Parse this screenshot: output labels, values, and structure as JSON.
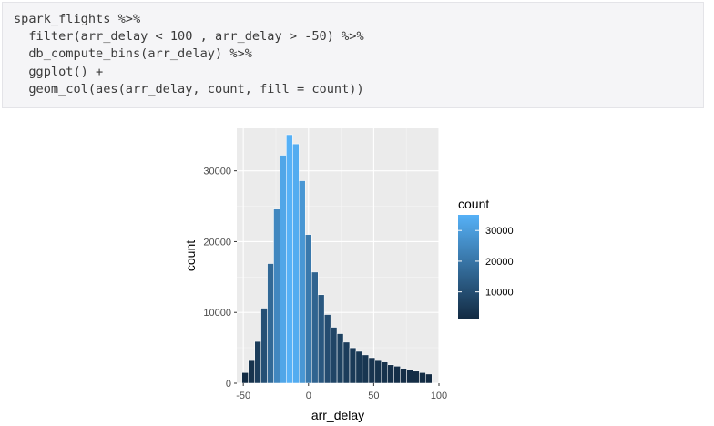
{
  "code": {
    "lines": [
      "spark_flights %>%",
      "  filter(arr_delay < 100 , arr_delay > -50) %>%",
      "  db_compute_bins(arr_delay) %>%",
      "  ggplot() +",
      "  geom_col(aes(arr_delay, count, fill = count))"
    ]
  },
  "chart_data": {
    "type": "bar",
    "title": "",
    "xlabel": "arr_delay",
    "ylabel": "count",
    "xlim": [
      -55,
      100
    ],
    "ylim": [
      0,
      36000
    ],
    "x_ticks": [
      -50,
      0,
      50,
      100
    ],
    "y_ticks": [
      0,
      10000,
      20000,
      30000
    ],
    "x_tick_labels": [
      "-50",
      "0",
      "50",
      "100"
    ],
    "y_tick_labels": [
      "0",
      "10000",
      "20000",
      "30000"
    ],
    "bin_width": 4.85,
    "x": [
      -48.6,
      -43.7,
      -38.8,
      -34.0,
      -29.1,
      -24.3,
      -19.4,
      -14.6,
      -9.7,
      -4.9,
      0.0,
      4.9,
      9.7,
      14.6,
      19.4,
      24.3,
      29.1,
      34.0,
      38.8,
      43.7,
      48.6,
      53.4,
      58.3,
      63.1,
      68.0,
      72.8,
      77.7,
      82.5,
      87.4,
      92.2
    ],
    "values": [
      1500,
      3200,
      5900,
      10600,
      16900,
      24600,
      32200,
      35100,
      33800,
      28600,
      21000,
      15700,
      12500,
      9700,
      7900,
      7000,
      5800,
      5000,
      4500,
      4000,
      3600,
      3200,
      3000,
      2600,
      2400,
      2100,
      1900,
      1700,
      1500,
      1300
    ],
    "grid": true,
    "legend": {
      "title": "count",
      "position": "right",
      "ticks": [
        10000,
        20000,
        30000
      ],
      "tick_labels": [
        "10000",
        "20000",
        "30000"
      ],
      "range": [
        1300,
        35100
      ]
    },
    "colors": {
      "low": "#132b43",
      "high": "#56b1f7",
      "panel": "#ebebeb",
      "grid_major": "#ffffff",
      "grid_minor": "#f5f5f5",
      "axis_text": "#4d4d4d",
      "axis_title": "#000000"
    }
  }
}
